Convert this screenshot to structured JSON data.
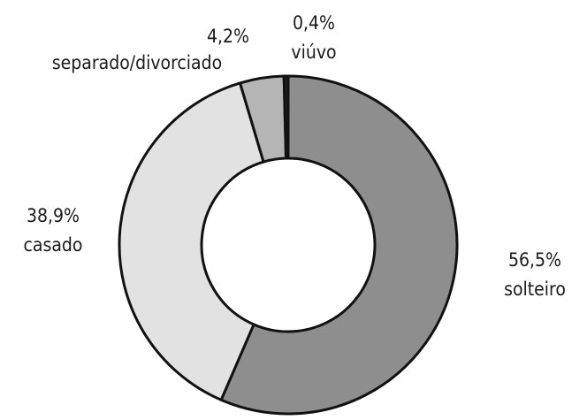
{
  "chart_data": {
    "type": "pie",
    "categories": [
      "solteiro",
      "casado",
      "separado/divorciado",
      "viúvo"
    ],
    "values": [
      56.5,
      38.9,
      4.2,
      0.4
    ],
    "value_labels": [
      "56,5%",
      "38,9%",
      "4,2%",
      "0,4%"
    ],
    "colors": [
      "#8e8e8e",
      "#e2e2e2",
      "#b5b5b5",
      "#222222"
    ],
    "donut": true
  }
}
